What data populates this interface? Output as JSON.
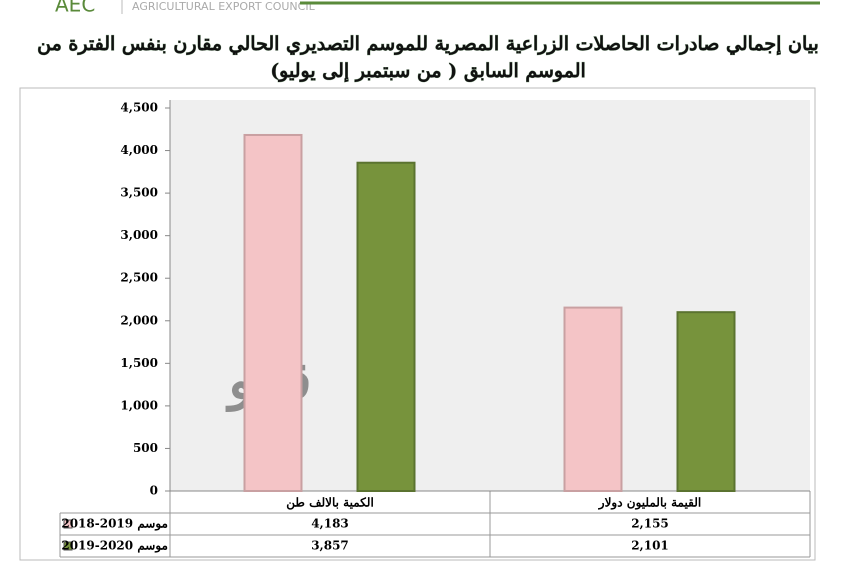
{
  "header": {
    "logo": "AEC",
    "organization": "AGRICULTURAL EXPORT COUNCIL"
  },
  "chart_data": {
    "type": "bar",
    "title": [
      "بيان إجمالي صادرات الحاصلات الزراعية المصرية للموسم التصديري الحالي مقارن بنفس الفترة من",
      "الموسم السابق ( من سبتمبر إلى يوليو)"
    ],
    "categories": [
      "الكمية بالالف طن",
      "القيمة بالمليون دولار"
    ],
    "series": [
      {
        "name": "موسم 2019-2018",
        "color": "#f4c4c6",
        "values": [
          4183,
          2155
        ],
        "value_labels": [
          "4,183",
          "2,155"
        ]
      },
      {
        "name": "موسم 2020-2019",
        "color": "#77933c",
        "values": [
          3857,
          2101
        ],
        "value_labels": [
          "3,857",
          "2,101"
        ]
      }
    ],
    "ylim": [
      0,
      4500
    ],
    "yticks": [
      0,
      500,
      {
        "value": 1000,
        "label": "1,000"
      },
      {
        "value": 1500,
        "label": "1,500"
      },
      {
        "value": 2000,
        "label": "2,000"
      },
      {
        "value": 2500,
        "label": "2,500"
      },
      {
        "value": 3000,
        "label": "3,000"
      },
      {
        "value": 3500,
        "label": "3,500"
      },
      {
        "value": 4000,
        "label": "4,000"
      },
      {
        "value": 4500,
        "label": "4,500"
      }
    ],
    "grid": false,
    "watermark": "ڤيتو"
  }
}
